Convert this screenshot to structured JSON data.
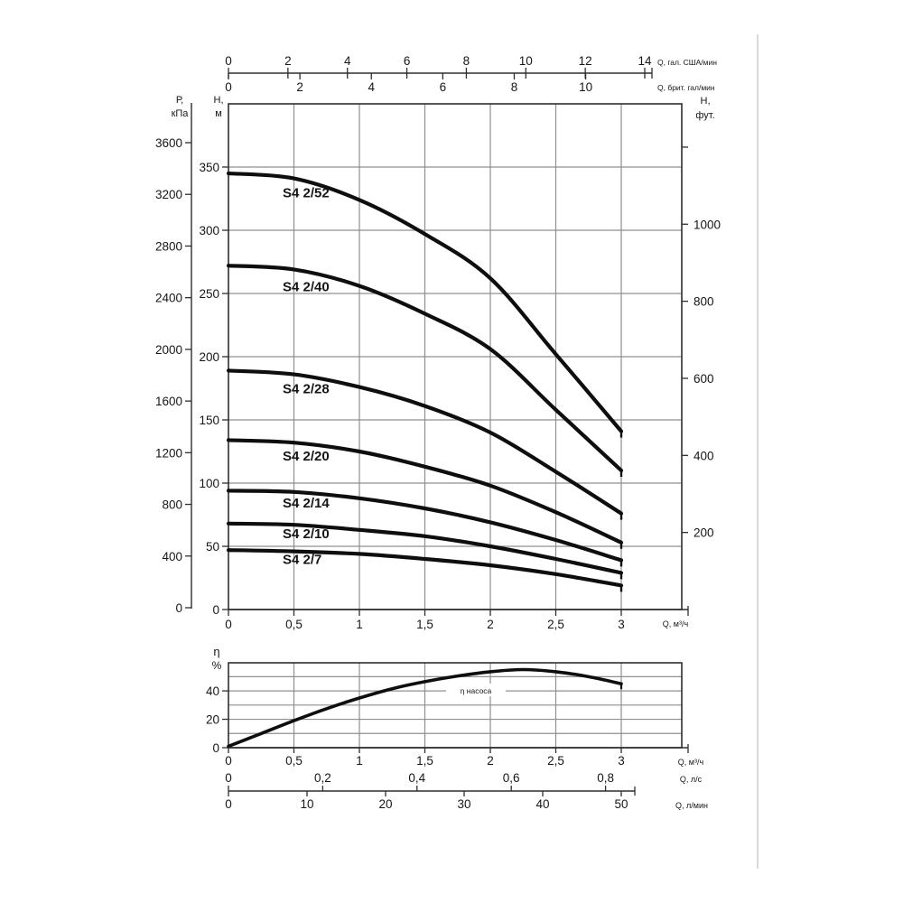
{
  "page": {
    "background": "#ffffff",
    "scan_edge_color": "#d9d9d9"
  },
  "colors": {
    "curve": "#0e0e0e",
    "grid": "#8f8f8f",
    "axis": "#2e2e2e",
    "text": "#161616"
  },
  "chart_data": [
    {
      "id": "head-capacity",
      "type": "line",
      "grid": "on",
      "legend": "none",
      "x_axes": {
        "m3h": {
          "unit": "Q, м³/ч",
          "tick_values": [
            0,
            0.5,
            1,
            1.5,
            2,
            2.5,
            3
          ],
          "tick_labels": [
            "0",
            "0,5",
            "1",
            "1,5",
            "2",
            "2,5",
            "3"
          ],
          "range": [
            0,
            3.46
          ]
        },
        "us_gpm": {
          "unit": "Q, гал. США/мин",
          "tick_values": [
            0,
            2,
            4,
            6,
            8,
            10,
            12,
            14
          ],
          "tick_labels": [
            "0",
            "2",
            "4",
            "6",
            "8",
            "10",
            "12",
            "14"
          ]
        },
        "imp_gpm": {
          "unit": "Q, брит. гал/мин",
          "tick_values": [
            0,
            2,
            4,
            6,
            8,
            10
          ],
          "tick_labels": [
            "0",
            "2",
            "4",
            "6",
            "8",
            "10"
          ]
        }
      },
      "y_axes": {
        "h_m": {
          "unit_line1": "Н,",
          "unit_line2": "м",
          "tick_values": [
            0,
            50,
            100,
            150,
            200,
            250,
            300,
            350
          ],
          "range": [
            0,
            400
          ],
          "grid_step": 50
        },
        "p_kpa": {
          "unit_line1": "Р,",
          "unit_line2": "кПа",
          "tick_values": [
            0,
            400,
            800,
            1200,
            1600,
            2000,
            2400,
            2800,
            3200,
            3600
          ]
        },
        "h_ft": {
          "unit_line1": "Н,",
          "unit_line2": "фут.",
          "tick_values": [
            200,
            400,
            600,
            800,
            1000,
            1200
          ],
          "labeled_values": [
            200,
            400,
            600,
            800,
            1000
          ]
        }
      },
      "series": [
        {
          "name": "S4 2/52",
          "points": [
            [
              0,
              345
            ],
            [
              0.5,
              341
            ],
            [
              1,
              324
            ],
            [
              1.5,
              297
            ],
            [
              2,
              262
            ],
            [
              2.5,
              202
            ],
            [
              3,
              141
            ]
          ]
        },
        {
          "name": "S4 2/40",
          "points": [
            [
              0,
              272
            ],
            [
              0.5,
              269
            ],
            [
              1,
              256
            ],
            [
              1.5,
              234
            ],
            [
              2,
              206
            ],
            [
              2.5,
              158
            ],
            [
              3,
              110
            ]
          ]
        },
        {
          "name": "S4 2/28",
          "points": [
            [
              0,
              189
            ],
            [
              0.5,
              186
            ],
            [
              1,
              176
            ],
            [
              1.5,
              161
            ],
            [
              2,
              140
            ],
            [
              2.5,
              109
            ],
            [
              3,
              76
            ]
          ]
        },
        {
          "name": "S4 2/20",
          "points": [
            [
              0,
              134
            ],
            [
              0.5,
              132
            ],
            [
              1,
              125
            ],
            [
              1.5,
              113
            ],
            [
              2,
              98
            ],
            [
              2.5,
              77
            ],
            [
              3,
              53
            ]
          ]
        },
        {
          "name": "S4 2/14",
          "points": [
            [
              0,
              94
            ],
            [
              0.5,
              93
            ],
            [
              1,
              88
            ],
            [
              1.5,
              80
            ],
            [
              2,
              69
            ],
            [
              2.5,
              55
            ],
            [
              3,
              39
            ]
          ]
        },
        {
          "name": "S4 2/10",
          "points": [
            [
              0,
              68
            ],
            [
              0.5,
              67
            ],
            [
              1,
              63
            ],
            [
              1.5,
              58
            ],
            [
              2,
              50
            ],
            [
              2.5,
              40
            ],
            [
              3,
              29
            ]
          ]
        },
        {
          "name": "S4 2/7",
          "points": [
            [
              0,
              47
            ],
            [
              0.5,
              46
            ],
            [
              1,
              44
            ],
            [
              1.5,
              40
            ],
            [
              2,
              35
            ],
            [
              2.5,
              28
            ],
            [
              3,
              19
            ]
          ]
        }
      ]
    },
    {
      "id": "efficiency",
      "type": "line",
      "grid": "on",
      "legend": "none",
      "x_axes": {
        "m3h": {
          "unit": "Q, м³/ч",
          "tick_values": [
            0,
            0.5,
            1,
            1.5,
            2,
            2.5,
            3
          ],
          "tick_labels": [
            "0",
            "0,5",
            "1",
            "1,5",
            "2",
            "2,5",
            "3"
          ]
        },
        "l_s": {
          "unit": "Q, л/с",
          "tick_values": [
            0,
            0.2,
            0.4,
            0.6,
            0.8
          ],
          "tick_labels": [
            "0",
            "0,2",
            "0,4",
            "0,6",
            "0,8"
          ]
        },
        "l_min": {
          "unit": "Q, л/мин",
          "tick_values": [
            0,
            10,
            20,
            30,
            40,
            50
          ],
          "tick_labels": [
            "0",
            "10",
            "20",
            "30",
            "40",
            "50"
          ]
        }
      },
      "y_axis": {
        "unit_line1": "η",
        "unit_line2": "%",
        "tick_values": [
          0,
          20,
          40
        ],
        "grid_step": 10,
        "range": [
          0,
          60
        ]
      },
      "series": [
        {
          "name": "η насоса",
          "points": [
            [
              0,
              1
            ],
            [
              0.25,
              10
            ],
            [
              0.5,
              19
            ],
            [
              0.75,
              27.5
            ],
            [
              1,
              35
            ],
            [
              1.25,
              41.5
            ],
            [
              1.5,
              46.5
            ],
            [
              1.75,
              50.5
            ],
            [
              2,
              53.5
            ],
            [
              2.25,
              55
            ],
            [
              2.5,
              53.5
            ],
            [
              2.75,
              50
            ],
            [
              3,
              45
            ]
          ]
        }
      ]
    }
  ]
}
